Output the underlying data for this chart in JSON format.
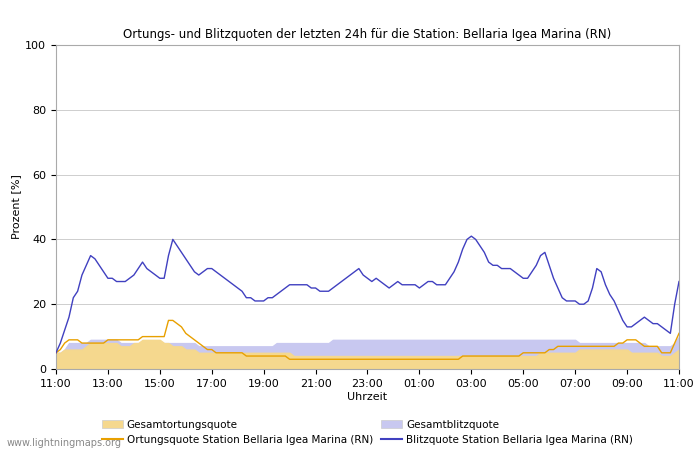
{
  "title": "Ortungs- und Blitzquoten der letzten 24h für die Station: Bellaria Igea Marina (RN)",
  "ylabel": "Prozent [%]",
  "xlabel": "Uhrzeit",
  "watermark": "www.lightningmaps.org",
  "xtick_labels": [
    "11:00",
    "13:00",
    "15:00",
    "17:00",
    "19:00",
    "21:00",
    "23:00",
    "01:00",
    "03:00",
    "05:00",
    "07:00",
    "09:00",
    "11:00"
  ],
  "ylim": [
    0,
    100
  ],
  "ytick_labels": [
    0,
    20,
    40,
    60,
    80,
    100
  ],
  "legend_entries": [
    {
      "label": "Gesamtortungsquote",
      "color": "#f5d88e",
      "type": "fill"
    },
    {
      "label": "Ortungsquote Station Bellaria Igea Marina (RN)",
      "color": "#e8a000",
      "type": "line"
    },
    {
      "label": "Gesamtblitzquote",
      "color": "#c8c8f0",
      "type": "fill"
    },
    {
      "label": "Blitzquote Station Bellaria Igea Marina (RN)",
      "color": "#4040c0",
      "type": "line"
    }
  ],
  "bg_color": "#ffffff",
  "plot_bg_color": "#ffffff",
  "grid_color": "#bbbbbb",
  "n_points": 145,
  "gesamtortungsquote": [
    5,
    5,
    6,
    6,
    6,
    6,
    6,
    7,
    8,
    8,
    8,
    8,
    8,
    8,
    8,
    7,
    7,
    7,
    8,
    8,
    9,
    9,
    9,
    9,
    9,
    8,
    8,
    7,
    7,
    7,
    6,
    6,
    6,
    5,
    5,
    5,
    5,
    5,
    5,
    5,
    5,
    5,
    5,
    5,
    5,
    5,
    5,
    5,
    5,
    5,
    5,
    5,
    5,
    5,
    5,
    4,
    4,
    4,
    4,
    4,
    4,
    4,
    4,
    4,
    4,
    4,
    4,
    4,
    4,
    4,
    4,
    4,
    4,
    4,
    4,
    4,
    4,
    4,
    4,
    4,
    4,
    4,
    4,
    4,
    4,
    4,
    4,
    4,
    4,
    4,
    4,
    4,
    4,
    4,
    4,
    4,
    4,
    4,
    4,
    4,
    4,
    4,
    4,
    4,
    4,
    4,
    4,
    4,
    4,
    4,
    4,
    4,
    5,
    5,
    5,
    5,
    5,
    5,
    5,
    5,
    5,
    6,
    6,
    6,
    6,
    6,
    6,
    6,
    6,
    6,
    6,
    6,
    6,
    5,
    5,
    5,
    5,
    5,
    5,
    5,
    4,
    4,
    4,
    5,
    6
  ],
  "ortungsquote": [
    5,
    6,
    8,
    9,
    9,
    9,
    8,
    8,
    8,
    8,
    8,
    8,
    9,
    9,
    9,
    9,
    9,
    9,
    9,
    9,
    10,
    10,
    10,
    10,
    10,
    10,
    15,
    15,
    14,
    13,
    11,
    10,
    9,
    8,
    7,
    6,
    6,
    5,
    5,
    5,
    5,
    5,
    5,
    5,
    4,
    4,
    4,
    4,
    4,
    4,
    4,
    4,
    4,
    4,
    3,
    3,
    3,
    3,
    3,
    3,
    3,
    3,
    3,
    3,
    3,
    3,
    3,
    3,
    3,
    3,
    3,
    3,
    3,
    3,
    3,
    3,
    3,
    3,
    3,
    3,
    3,
    3,
    3,
    3,
    3,
    3,
    3,
    3,
    3,
    3,
    3,
    3,
    3,
    3,
    4,
    4,
    4,
    4,
    4,
    4,
    4,
    4,
    4,
    4,
    4,
    4,
    4,
    4,
    5,
    5,
    5,
    5,
    5,
    5,
    6,
    6,
    7,
    7,
    7,
    7,
    7,
    7,
    7,
    7,
    7,
    7,
    7,
    7,
    7,
    7,
    8,
    8,
    9,
    9,
    9,
    8,
    7,
    7,
    7,
    7,
    5,
    5,
    5,
    8,
    11
  ],
  "gesamtblitzquote": [
    5,
    5,
    6,
    8,
    8,
    8,
    8,
    8,
    9,
    9,
    9,
    9,
    9,
    9,
    9,
    8,
    8,
    8,
    8,
    8,
    8,
    8,
    8,
    8,
    8,
    8,
    8,
    8,
    8,
    8,
    8,
    8,
    8,
    7,
    7,
    7,
    7,
    7,
    7,
    7,
    7,
    7,
    7,
    7,
    7,
    7,
    7,
    7,
    7,
    7,
    7,
    8,
    8,
    8,
    8,
    8,
    8,
    8,
    8,
    8,
    8,
    8,
    8,
    8,
    9,
    9,
    9,
    9,
    9,
    9,
    9,
    9,
    9,
    9,
    9,
    9,
    9,
    9,
    9,
    9,
    9,
    9,
    9,
    9,
    9,
    9,
    9,
    9,
    9,
    9,
    9,
    9,
    9,
    9,
    9,
    9,
    9,
    9,
    9,
    9,
    9,
    9,
    9,
    9,
    9,
    9,
    9,
    9,
    9,
    9,
    9,
    9,
    9,
    9,
    9,
    9,
    9,
    9,
    9,
    9,
    9,
    8,
    8,
    8,
    8,
    8,
    8,
    8,
    8,
    8,
    8,
    8,
    8,
    8,
    8,
    8,
    8,
    7,
    7,
    7,
    7,
    7,
    7,
    8,
    10
  ],
  "blitzquote": [
    5,
    8,
    12,
    16,
    22,
    24,
    29,
    32,
    35,
    34,
    32,
    30,
    28,
    28,
    27,
    27,
    27,
    28,
    29,
    31,
    33,
    31,
    30,
    29,
    28,
    28,
    35,
    40,
    38,
    36,
    34,
    32,
    30,
    29,
    30,
    31,
    31,
    30,
    29,
    28,
    27,
    26,
    25,
    24,
    22,
    22,
    21,
    21,
    21,
    22,
    22,
    23,
    24,
    25,
    26,
    26,
    26,
    26,
    26,
    25,
    25,
    24,
    24,
    24,
    25,
    26,
    27,
    28,
    29,
    30,
    31,
    29,
    28,
    27,
    28,
    27,
    26,
    25,
    26,
    27,
    26,
    26,
    26,
    26,
    25,
    26,
    27,
    27,
    26,
    26,
    26,
    28,
    30,
    33,
    37,
    40,
    41,
    40,
    38,
    36,
    33,
    32,
    32,
    31,
    31,
    31,
    30,
    29,
    28,
    28,
    30,
    32,
    35,
    36,
    32,
    28,
    25,
    22,
    21,
    21,
    21,
    20,
    20,
    21,
    25,
    31,
    30,
    26,
    23,
    21,
    18,
    15,
    13,
    13,
    14,
    15,
    16,
    15,
    14,
    14,
    13,
    12,
    11,
    20,
    27
  ]
}
